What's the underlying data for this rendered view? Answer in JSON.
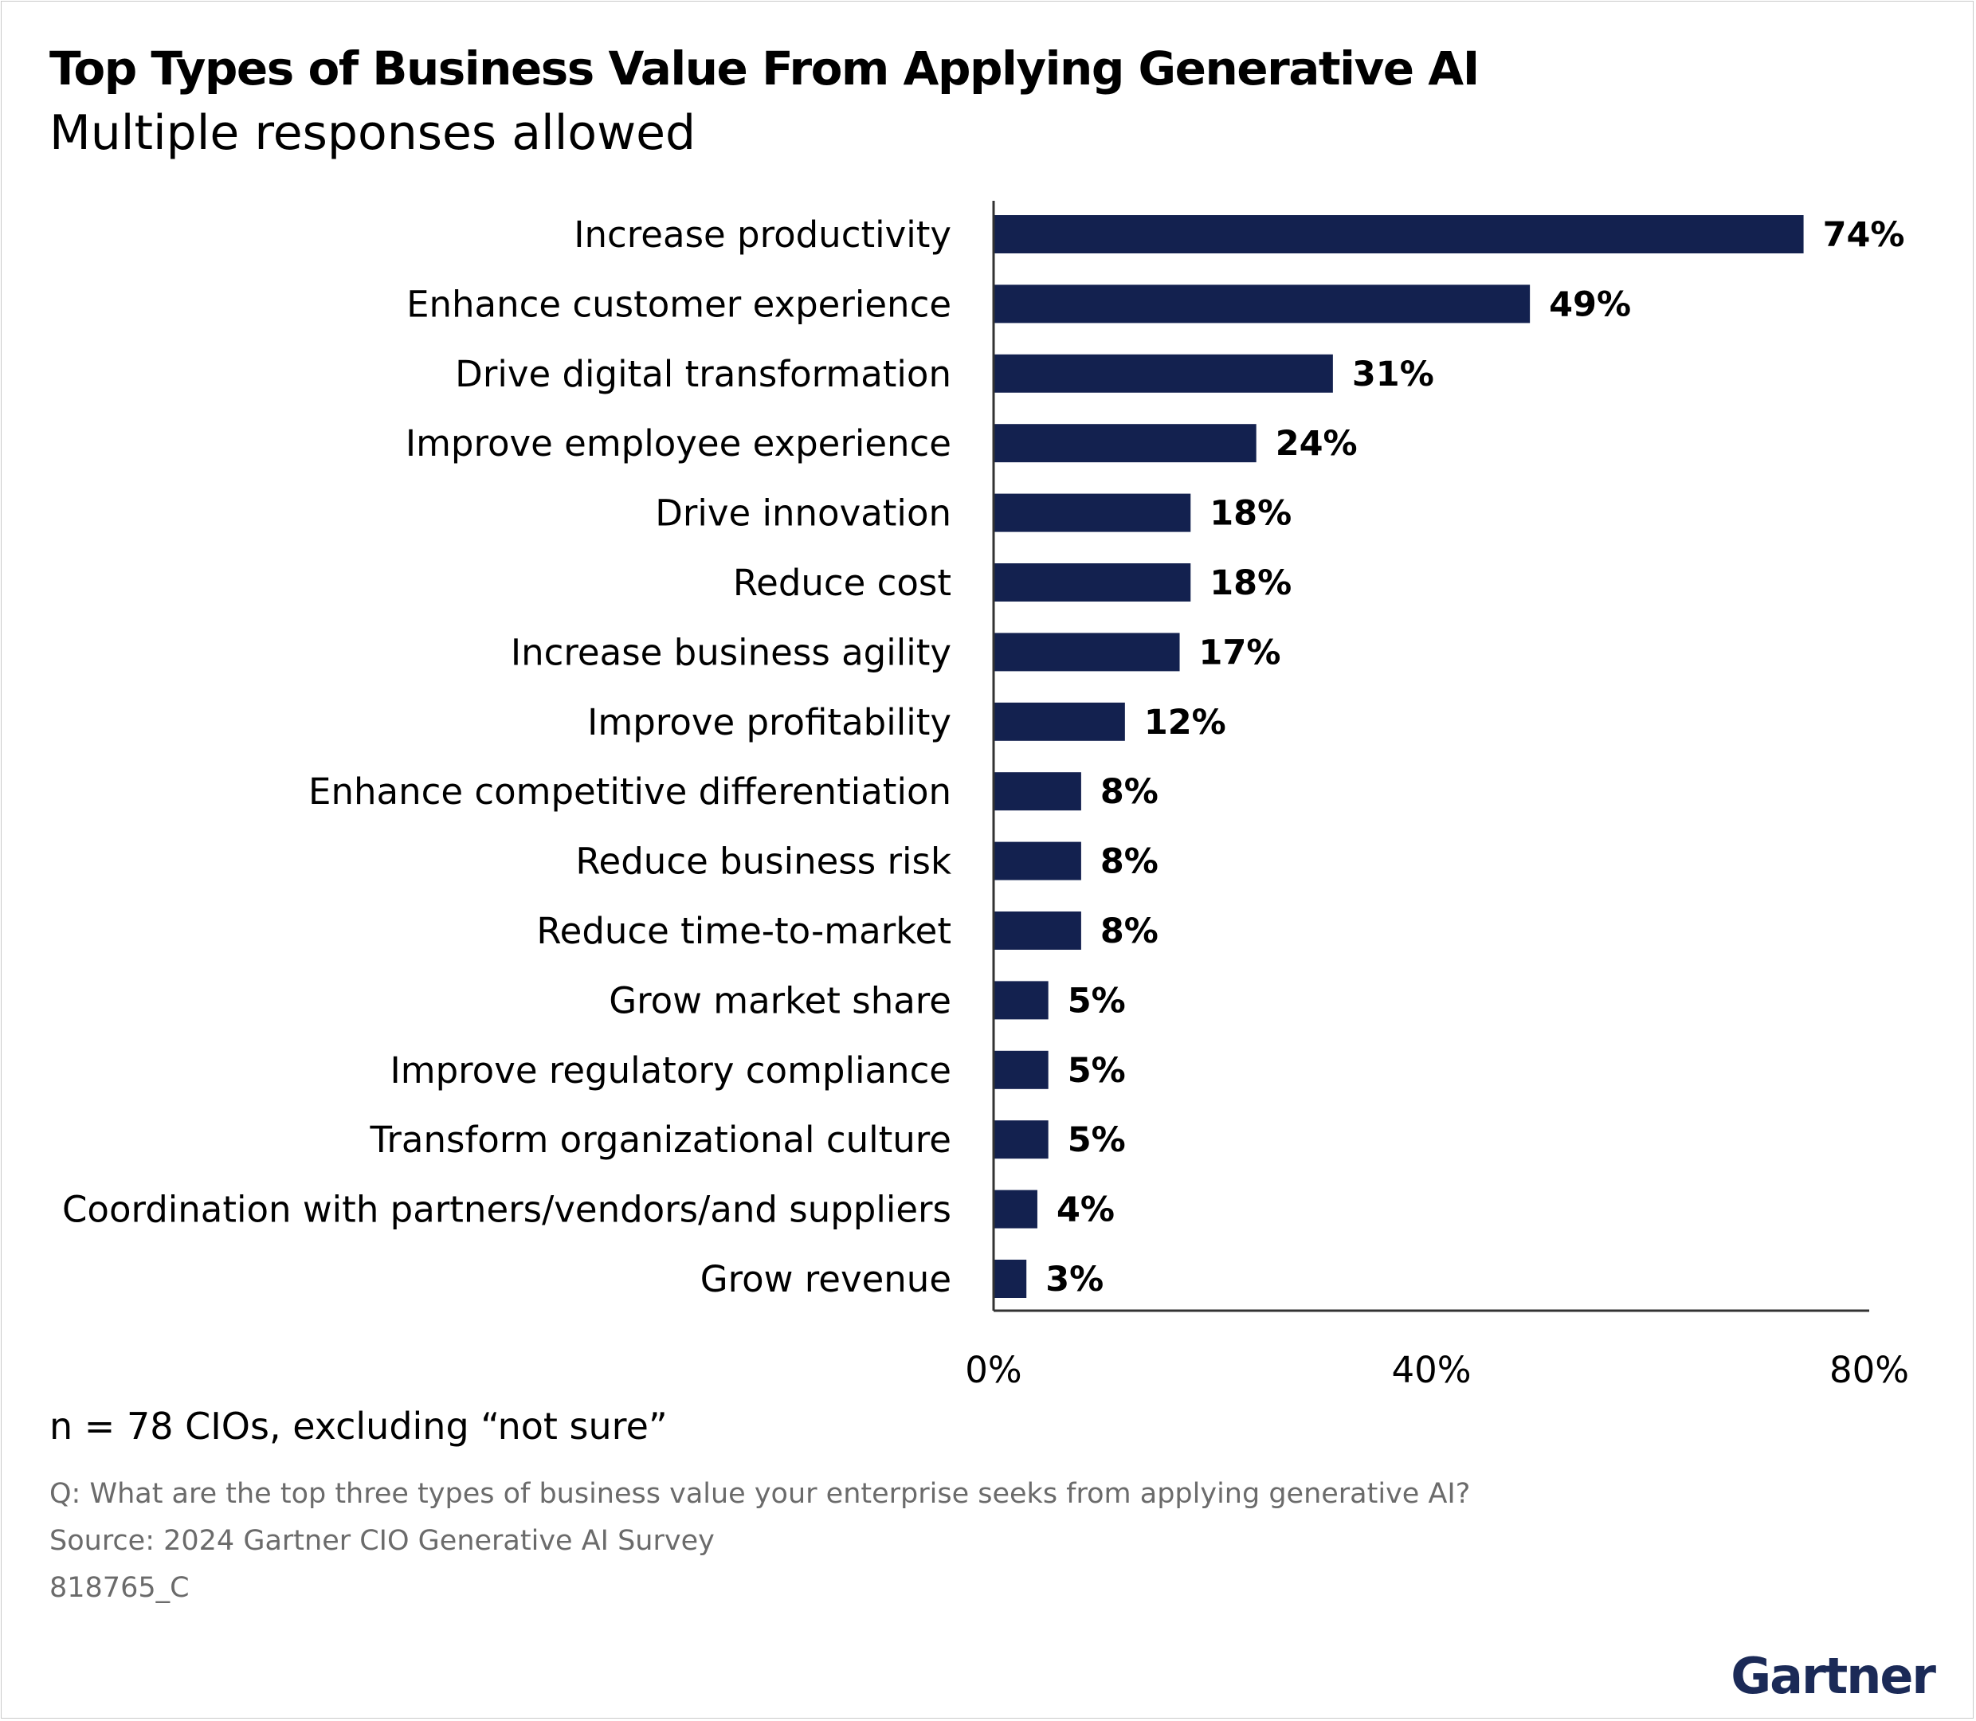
{
  "title": "Top Types of Business Value From Applying Generative AI",
  "subtitle": "Multiple responses allowed",
  "note": "n = 78 CIOs, excluding “not sure”",
  "question": "Q: What are the top three types of business value your enterprise seeks from applying generative AI?",
  "source": "Source: 2024 Gartner CIO Generative AI Survey",
  "doc_id": "818765_C",
  "logo_text": "Gartner",
  "colors": {
    "bar": "#13214f",
    "axis": "#333333",
    "footer_text": "#6b6b6b",
    "logo": "#1b2a57"
  },
  "chart_data": {
    "type": "bar",
    "orientation": "horizontal",
    "categories": [
      "Increase productivity",
      "Enhance customer experience",
      "Drive digital transformation",
      "Improve employee experience",
      "Drive innovation",
      "Reduce cost",
      "Increase business agility",
      "Improve profitability",
      "Enhance competitive differentiation",
      "Reduce business risk",
      "Reduce time-to-market",
      "Grow market share",
      "Improve regulatory compliance",
      "Transform organizational culture",
      "Coordination with partners/vendors/and suppliers",
      "Grow revenue"
    ],
    "values": [
      74,
      49,
      31,
      24,
      18,
      18,
      17,
      12,
      8,
      8,
      8,
      5,
      5,
      5,
      4,
      3
    ],
    "value_labels": [
      "74%",
      "49%",
      "31%",
      "24%",
      "18%",
      "18%",
      "17%",
      "12%",
      "8%",
      "8%",
      "8%",
      "5%",
      "5%",
      "5%",
      "4%",
      "3%"
    ],
    "xlim": [
      0,
      80
    ],
    "xticks": [
      0,
      40,
      80
    ],
    "xtick_labels": [
      "0%",
      "40%",
      "80%"
    ],
    "grid": false,
    "legend": "none"
  }
}
